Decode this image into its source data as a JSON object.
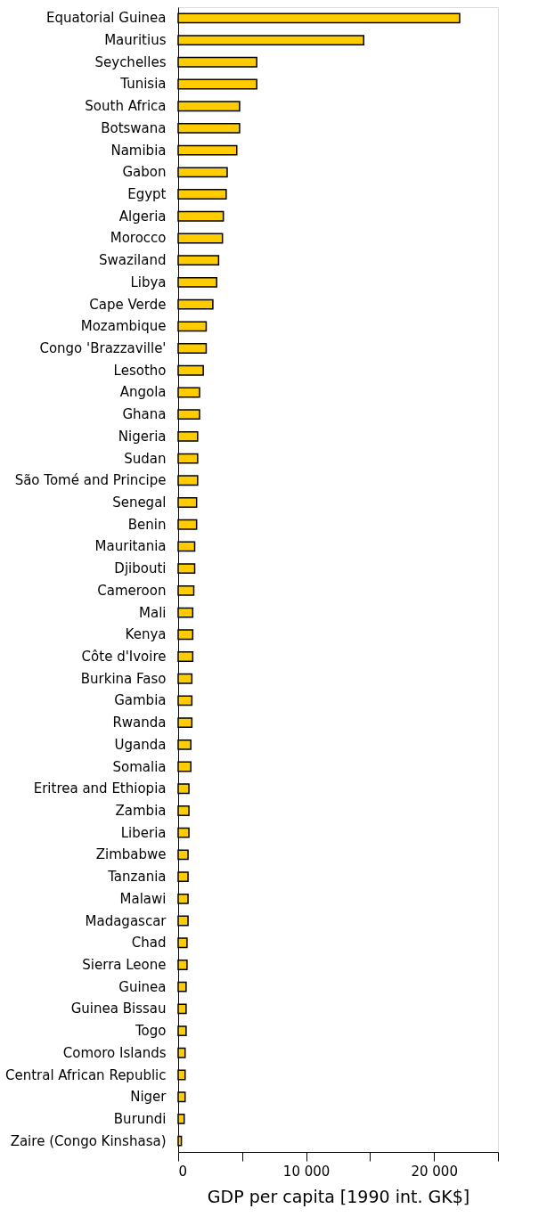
{
  "chart_data": {
    "type": "bar",
    "orientation": "horizontal",
    "xlabel": "GDP per capita [1990 int. GK$]",
    "categories": [
      "Equatorial Guinea",
      "Mauritius",
      "Seychelles",
      "Tunisia",
      "South Africa",
      "Botswana",
      "Namibia",
      "Gabon",
      "Egypt",
      "Algeria",
      "Morocco",
      "Swaziland",
      "Libya",
      "Cape Verde",
      "Mozambique",
      "Congo 'Brazzaville'",
      "Lesotho",
      "Angola",
      "Ghana",
      "Nigeria",
      "Sudan",
      "São Tomé and Principe",
      "Senegal",
      "Benin",
      "Mauritania",
      "Djibouti",
      "Cameroon",
      "Mali",
      "Kenya",
      "Côte d'Ivoire",
      "Burkina Faso",
      "Gambia",
      "Rwanda",
      "Uganda",
      "Somalia",
      "Eritrea and Ethiopia",
      "Zambia",
      "Liberia",
      "Zimbabwe",
      "Tanzania",
      "Malawi",
      "Madagascar",
      "Chad",
      "Sierra Leone",
      "Guinea",
      "Guinea Bissau",
      "Togo",
      "Comoro Islands",
      "Central African Republic",
      "Niger",
      "Burundi",
      "Zaire (Congo Kinshasa)"
    ],
    "values": [
      22000,
      14500,
      6140,
      6140,
      4800,
      4800,
      4580,
      3830,
      3750,
      3530,
      3460,
      3160,
      3010,
      2710,
      2190,
      2190,
      1960,
      1670,
      1670,
      1520,
      1520,
      1520,
      1440,
      1440,
      1290,
      1290,
      1220,
      1140,
      1140,
      1140,
      1070,
      1070,
      1070,
      990,
      990,
      840,
      840,
      840,
      770,
      770,
      770,
      770,
      690,
      690,
      620,
      620,
      620,
      540,
      540,
      540,
      470,
      250
    ],
    "color": "#ffcc00",
    "xlim": [
      0,
      25000
    ],
    "xticks": [
      0,
      {
        "value": 5000,
        "label": null
      },
      {
        "value": 10000,
        "label": "10 000"
      },
      {
        "value": 15000,
        "label": null
      },
      {
        "value": 20000,
        "label": "20 000"
      },
      {
        "value": 25000,
        "label": null
      }
    ],
    "grid": false
  }
}
